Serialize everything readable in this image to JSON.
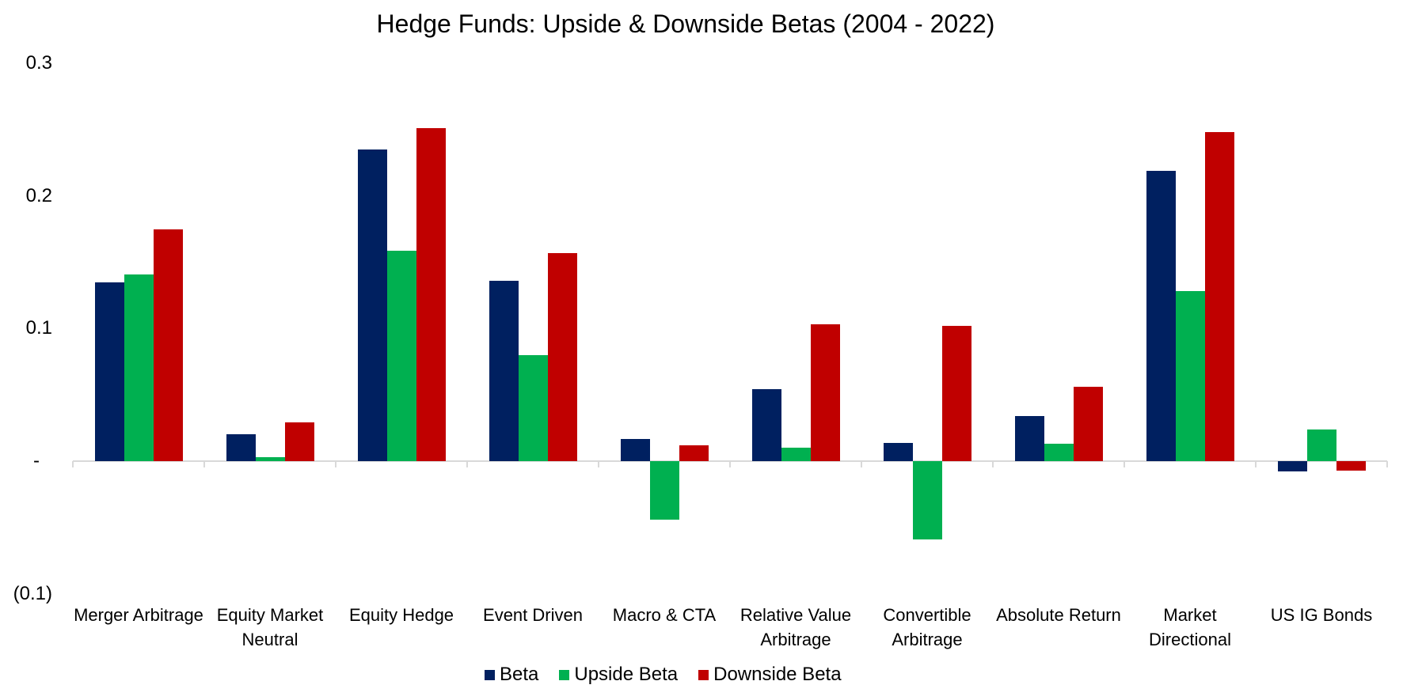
{
  "chart_data": {
    "type": "bar",
    "title": "Hedge Funds: Upside & Downside Betas (2004 - 2022)",
    "categories": [
      "Merger Arbitrage",
      "Equity Market Neutral",
      "Equity Hedge",
      "Event Driven",
      "Macro & CTA",
      "Relative Value Arbitrage",
      "Convertible Arbitrage",
      "Absolute Return",
      "Market Directional",
      "US IG Bonds"
    ],
    "series": [
      {
        "name": "Beta",
        "color": "#002060",
        "values": [
          0.135,
          0.02,
          0.235,
          0.136,
          0.017,
          0.054,
          0.014,
          0.034,
          0.219,
          -0.008
        ]
      },
      {
        "name": "Upside Beta",
        "color": "#00B050",
        "values": [
          0.141,
          0.003,
          0.159,
          0.08,
          -0.044,
          0.01,
          -0.059,
          0.013,
          0.128,
          0.024
        ]
      },
      {
        "name": "Downside Beta",
        "color": "#C00000",
        "values": [
          0.175,
          0.029,
          0.251,
          0.157,
          0.012,
          0.103,
          0.102,
          0.056,
          0.248,
          -0.007
        ]
      }
    ],
    "yticks": [
      {
        "value": 0.3,
        "label": "0.3"
      },
      {
        "value": 0.2,
        "label": "0.2"
      },
      {
        "value": 0.1,
        "label": "0.1"
      },
      {
        "value": 0.0,
        "label": "-"
      },
      {
        "value": -0.1,
        "label": "(0.1)"
      }
    ],
    "ylim": [
      -0.1,
      0.3
    ],
    "xlabel": "",
    "ylabel": "",
    "grid": false,
    "legend_position": "bottom",
    "axis_color": "#D9D9D9",
    "text_color": "#000000",
    "background": "#FFFFFF"
  }
}
